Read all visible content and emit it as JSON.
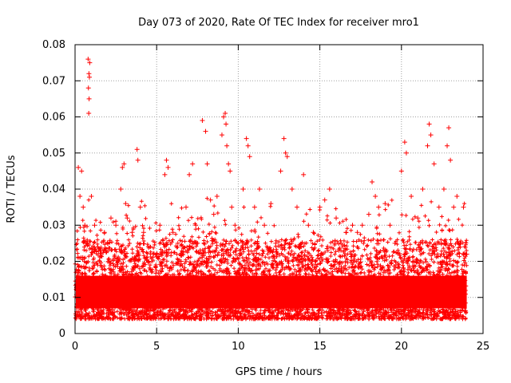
{
  "chart_data": {
    "type": "scatter",
    "title": "Day 073 of 2020, Rate Of TEC Index for receiver mro1",
    "xlabel": "GPS time / hours",
    "ylabel": "ROTI / TECUs",
    "xlim": [
      0,
      25
    ],
    "ylim": [
      0,
      0.08
    ],
    "xticks": [
      0,
      5,
      10,
      15,
      20,
      25
    ],
    "xtick_labels": [
      "0",
      "5",
      "10",
      "15",
      "20",
      "25"
    ],
    "yticks": [
      0,
      0.01,
      0.02,
      0.03,
      0.04,
      0.05,
      0.06,
      0.07,
      0.08
    ],
    "ytick_labels": [
      "0",
      "0.01",
      "0.02",
      "0.03",
      "0.04",
      "0.05",
      "0.06",
      "0.07",
      "0.08"
    ],
    "grid": true,
    "marker": "+",
    "series_color": "#ff0000",
    "series": [
      {
        "x": [
          0.1,
          0.2,
          0.3,
          0.4,
          0.5,
          0.6,
          0.7,
          0.8,
          0.9,
          0.85,
          0.82,
          0.86,
          0.88,
          0.84,
          1.0,
          1.2,
          1.5,
          1.8,
          2.0,
          2.2,
          2.5,
          2.8,
          2.9,
          3.0,
          3.1,
          3.2,
          3.5,
          3.8,
          3.85,
          4.0,
          4.2,
          4.5,
          4.8,
          5.0,
          5.2,
          5.5,
          5.6,
          5.7,
          6.0,
          6.3,
          6.5,
          6.8,
          7.0,
          7.2,
          7.4,
          7.5,
          7.8,
          8.0,
          8.1,
          8.3,
          8.5,
          8.7,
          9.0,
          9.1,
          9.2,
          9.25,
          9.3,
          9.4,
          9.5,
          9.6,
          9.8,
          10.0,
          10.3,
          10.5,
          10.6,
          10.7,
          11.0,
          11.3,
          11.6,
          12.0,
          12.3,
          12.6,
          12.8,
          12.9,
          13.0,
          13.3,
          13.6,
          14.0,
          14.3,
          14.6,
          15.0,
          15.3,
          15.6,
          16.0,
          16.3,
          16.6,
          17.0,
          17.3,
          17.6,
          18.0,
          18.2,
          18.4,
          18.6,
          19.0,
          19.3,
          19.6,
          20.0,
          20.2,
          20.3,
          20.6,
          21.0,
          21.3,
          21.6,
          21.7,
          21.8,
          22.0,
          22.3,
          22.6,
          22.8,
          22.9,
          23.0,
          23.2,
          23.4,
          23.6,
          23.8,
          24.0
        ],
        "y": [
          0.012,
          0.046,
          0.038,
          0.045,
          0.035,
          0.03,
          0.025,
          0.076,
          0.075,
          0.072,
          0.068,
          0.065,
          0.071,
          0.061,
          0.038,
          0.03,
          0.02,
          0.028,
          0.025,
          0.032,
          0.03,
          0.04,
          0.046,
          0.047,
          0.036,
          0.032,
          0.028,
          0.051,
          0.048,
          0.035,
          0.028,
          0.02,
          0.022,
          0.022,
          0.03,
          0.044,
          0.048,
          0.046,
          0.028,
          0.025,
          0.02,
          0.035,
          0.044,
          0.047,
          0.03,
          0.025,
          0.059,
          0.056,
          0.047,
          0.037,
          0.033,
          0.038,
          0.055,
          0.06,
          0.061,
          0.058,
          0.052,
          0.047,
          0.045,
          0.035,
          0.03,
          0.025,
          0.04,
          0.054,
          0.052,
          0.049,
          0.035,
          0.04,
          0.03,
          0.036,
          0.025,
          0.045,
          0.054,
          0.05,
          0.049,
          0.04,
          0.035,
          0.044,
          0.03,
          0.028,
          0.035,
          0.037,
          0.04,
          0.032,
          0.025,
          0.028,
          0.03,
          0.028,
          0.03,
          0.033,
          0.042,
          0.038,
          0.035,
          0.036,
          0.03,
          0.025,
          0.045,
          0.053,
          0.05,
          0.038,
          0.032,
          0.04,
          0.052,
          0.058,
          0.055,
          0.047,
          0.035,
          0.04,
          0.052,
          0.057,
          0.048,
          0.035,
          0.038,
          0.025,
          0.035,
          0.022
        ]
      }
    ]
  }
}
